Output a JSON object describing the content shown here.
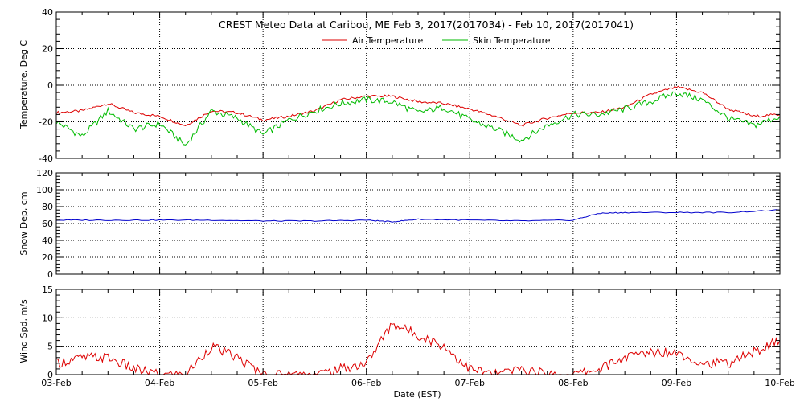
{
  "chart_data": [
    {
      "type": "line",
      "title": "CREST Meteo Data at Caribou, ME   Feb  3, 2017(2017034) - Feb 10, 2017(2017041)",
      "ylabel": "Temperature, Deg C",
      "xlabel": "",
      "ylim": [
        -40,
        40
      ],
      "yticks": [
        -40,
        -20,
        0,
        20,
        40
      ],
      "x": [
        "03-Feb 00:00",
        "03-Feb 06:00",
        "03-Feb 12:00",
        "03-Feb 18:00",
        "04-Feb 00:00",
        "04-Feb 06:00",
        "04-Feb 12:00",
        "04-Feb 18:00",
        "05-Feb 00:00",
        "05-Feb 06:00",
        "05-Feb 12:00",
        "05-Feb 18:00",
        "06-Feb 00:00",
        "06-Feb 06:00",
        "06-Feb 12:00",
        "06-Feb 18:00",
        "07-Feb 00:00",
        "07-Feb 06:00",
        "07-Feb 12:00",
        "07-Feb 18:00",
        "08-Feb 00:00",
        "08-Feb 06:00",
        "08-Feb 12:00",
        "08-Feb 18:00",
        "09-Feb 00:00",
        "09-Feb 06:00",
        "09-Feb 12:00",
        "09-Feb 18:00",
        "10-Feb 00:00"
      ],
      "legend": "top-center",
      "grid": true,
      "series": [
        {
          "name": "Air Temperature",
          "color": "#dd0000",
          "values": [
            -15,
            -14,
            -10,
            -15,
            -17,
            -22,
            -14,
            -15,
            -19,
            -17,
            -14,
            -8,
            -6,
            -6,
            -9,
            -10,
            -13,
            -17,
            -22,
            -18,
            -15,
            -15,
            -12,
            -5,
            -1,
            -4,
            -13,
            -17,
            -16
          ]
        },
        {
          "name": "Skin Temperature",
          "color": "#00bb00",
          "values": [
            -20,
            -28,
            -14,
            -24,
            -21,
            -33,
            -14,
            -18,
            -27,
            -19,
            -14,
            -10,
            -8,
            -9,
            -15,
            -12,
            -19,
            -24,
            -30,
            -22,
            -16,
            -16,
            -13,
            -9,
            -4,
            -8,
            -18,
            -22,
            -17
          ]
        }
      ]
    },
    {
      "type": "line",
      "ylabel": "Snow Dep, cm",
      "ylim": [
        0,
        120
      ],
      "yticks": [
        0,
        20,
        40,
        60,
        80,
        100,
        120
      ],
      "x": [
        "03-Feb 00:00",
        "03-Feb 12:00",
        "04-Feb 00:00",
        "04-Feb 12:00",
        "05-Feb 00:00",
        "05-Feb 12:00",
        "06-Feb 00:00",
        "06-Feb 06:00",
        "06-Feb 12:00",
        "07-Feb 00:00",
        "07-Feb 12:00",
        "08-Feb 00:00",
        "08-Feb 06:00",
        "08-Feb 12:00",
        "09-Feb 00:00",
        "09-Feb 12:00",
        "10-Feb 00:00"
      ],
      "grid": true,
      "series": [
        {
          "name": "",
          "color": "#0000cc",
          "values": [
            64,
            64,
            64,
            64,
            63,
            63,
            64,
            62,
            65,
            64,
            63,
            64,
            72,
            73,
            73,
            73,
            76
          ]
        }
      ]
    },
    {
      "type": "line",
      "ylabel": "Wind Spd, m/s",
      "xlabel": "Date (EST)",
      "ylim": [
        0,
        15
      ],
      "yticks": [
        0,
        5,
        10,
        15
      ],
      "x": [
        "03-Feb 00:00",
        "03-Feb 06:00",
        "03-Feb 12:00",
        "03-Feb 18:00",
        "04-Feb 00:00",
        "04-Feb 06:00",
        "04-Feb 12:00",
        "04-Feb 18:00",
        "05-Feb 00:00",
        "05-Feb 06:00",
        "05-Feb 12:00",
        "05-Feb 18:00",
        "06-Feb 00:00",
        "06-Feb 06:00",
        "06-Feb 12:00",
        "06-Feb 18:00",
        "07-Feb 00:00",
        "07-Feb 06:00",
        "07-Feb 12:00",
        "07-Feb 18:00",
        "08-Feb 00:00",
        "08-Feb 06:00",
        "08-Feb 12:00",
        "08-Feb 18:00",
        "09-Feb 00:00",
        "09-Feb 06:00",
        "09-Feb 12:00",
        "09-Feb 18:00",
        "10-Feb 00:00"
      ],
      "xtick_labels": [
        "03-Feb",
        "04-Feb",
        "05-Feb",
        "06-Feb",
        "07-Feb",
        "08-Feb",
        "09-Feb",
        "10-Feb"
      ],
      "grid": true,
      "series": [
        {
          "name": "",
          "color": "#dd0000",
          "values": [
            2,
            3,
            3,
            1,
            0,
            0,
            5,
            3,
            0,
            0,
            0,
            1,
            2,
            9,
            7,
            5,
            1,
            0,
            1,
            0,
            0,
            1,
            3,
            4,
            4,
            2,
            2,
            4,
            6
          ]
        }
      ]
    }
  ]
}
